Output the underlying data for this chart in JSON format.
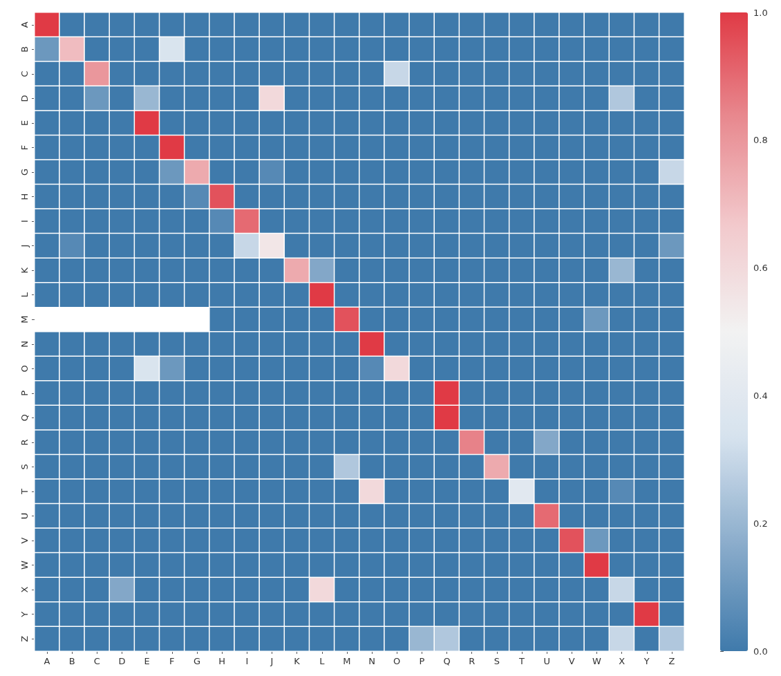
{
  "chart_data": {
    "type": "heatmap",
    "categories": [
      "A",
      "B",
      "C",
      "D",
      "E",
      "F",
      "G",
      "H",
      "I",
      "J",
      "K",
      "L",
      "M",
      "N",
      "O",
      "P",
      "Q",
      "R",
      "S",
      "T",
      "U",
      "V",
      "W",
      "X",
      "Y",
      "Z"
    ],
    "y_categories": [
      "A",
      "B",
      "C",
      "D",
      "E",
      "F",
      "G",
      "H",
      "I",
      "J",
      "K",
      "L",
      "M",
      "N",
      "O",
      "P",
      "Q",
      "R",
      "S",
      "T",
      "U",
      "V",
      "W",
      "X",
      "Y",
      "Z"
    ],
    "cells": [
      [
        1,
        0,
        0,
        0,
        0,
        0,
        0,
        0,
        0,
        0,
        0,
        0,
        0,
        0,
        0,
        0,
        0,
        0,
        0,
        0,
        0,
        0,
        0,
        0,
        0,
        0
      ],
      [
        0.1,
        0.7,
        0,
        0,
        0,
        0.35,
        0,
        0,
        0,
        0,
        0,
        0,
        0,
        0,
        0,
        0,
        0,
        0,
        0,
        0,
        0,
        0,
        0,
        0,
        0,
        0
      ],
      [
        0,
        0,
        0.8,
        0,
        0,
        0,
        0,
        0,
        0,
        0,
        0,
        0,
        0,
        0,
        0.3,
        0,
        0,
        0,
        0,
        0,
        0,
        0,
        0,
        0,
        0,
        0
      ],
      [
        0,
        0,
        0.1,
        0,
        0.2,
        0,
        0,
        0,
        0,
        0.6,
        0,
        0,
        0,
        0,
        0,
        0,
        0,
        0,
        0,
        0,
        0,
        0,
        0,
        0.25,
        0,
        0
      ],
      [
        0,
        0,
        0,
        0,
        1,
        0,
        0,
        0,
        0,
        0,
        0,
        0,
        0,
        0,
        0,
        0,
        0,
        0,
        0,
        0,
        0,
        0,
        0,
        0,
        0,
        0
      ],
      [
        0,
        0,
        0,
        0,
        0,
        1,
        0,
        0,
        0,
        0,
        0,
        0,
        0,
        0,
        0,
        0,
        0,
        0,
        0,
        0,
        0,
        0,
        0,
        0,
        0,
        0
      ],
      [
        0,
        0,
        0,
        0,
        0,
        0.1,
        0.75,
        0,
        0,
        0.05,
        0,
        0,
        0,
        0,
        0,
        0,
        0,
        0,
        0,
        0,
        0,
        0,
        0,
        0,
        0,
        0.3
      ],
      [
        0,
        0,
        0,
        0,
        0,
        0,
        0.05,
        0.95,
        0,
        0,
        0,
        0,
        0,
        0,
        0,
        0,
        0,
        0,
        0,
        0,
        0,
        0,
        0,
        0,
        0,
        0
      ],
      [
        0,
        0,
        0,
        0,
        0,
        0,
        0,
        0.05,
        0.9,
        0,
        0,
        0,
        0,
        0,
        0,
        0,
        0,
        0,
        0,
        0,
        0,
        0,
        0,
        0,
        0,
        0
      ],
      [
        0,
        0.05,
        0,
        0,
        0,
        0,
        0,
        0,
        0.3,
        0.55,
        0,
        0,
        0,
        0,
        0,
        0,
        0,
        0,
        0,
        0,
        0,
        0,
        0,
        0,
        0,
        0.1
      ],
      [
        0,
        0,
        0,
        0,
        0,
        0,
        0,
        0,
        0,
        0,
        0.75,
        0.15,
        0,
        0,
        0,
        0,
        0,
        0,
        0,
        0,
        0,
        0,
        0,
        0.2,
        0,
        0
      ],
      [
        0,
        0,
        0,
        0,
        0,
        0,
        0,
        0,
        0,
        0,
        0,
        1,
        0,
        0,
        0,
        0,
        0,
        0,
        0,
        0,
        0,
        0,
        0,
        0,
        0,
        0
      ],
      [
        null,
        null,
        null,
        null,
        null,
        null,
        null,
        0,
        0,
        0,
        0,
        0,
        0.95,
        0,
        0,
        0,
        0,
        0,
        0,
        0,
        0,
        0,
        0.1,
        0,
        0,
        0
      ],
      [
        0,
        0,
        0,
        0,
        0,
        0,
        0,
        0,
        0,
        0,
        0,
        0,
        0,
        1,
        0,
        0,
        0,
        0,
        0,
        0,
        0,
        0,
        0,
        0,
        0,
        0
      ],
      [
        0,
        0,
        0,
        0,
        0.35,
        0.1,
        0,
        0,
        0,
        0,
        0,
        0,
        0,
        0.05,
        0.6,
        0,
        0,
        0,
        0,
        0,
        0,
        0,
        0,
        0,
        0,
        0
      ],
      [
        0,
        0,
        0,
        0,
        0,
        0,
        0,
        0,
        0,
        0,
        0,
        0,
        0,
        0,
        0,
        0,
        1,
        0,
        0,
        0,
        0,
        0,
        0,
        0,
        0,
        0
      ],
      [
        0,
        0,
        0,
        0,
        0,
        0,
        0,
        0,
        0,
        0,
        0,
        0,
        0,
        0,
        0,
        0,
        1,
        0,
        0,
        0,
        0,
        0,
        0,
        0,
        0,
        0
      ],
      [
        0,
        0,
        0,
        0,
        0,
        0,
        0,
        0,
        0,
        0,
        0,
        0,
        0,
        0,
        0,
        0,
        0,
        0.85,
        0,
        0,
        0.15,
        0,
        0,
        0,
        0,
        0
      ],
      [
        0,
        0,
        0,
        0,
        0,
        0,
        0,
        0,
        0,
        0,
        0,
        0,
        0.25,
        0,
        0,
        0,
        0,
        0,
        0.75,
        0,
        0,
        0,
        0,
        0,
        0,
        0
      ],
      [
        0,
        0,
        0,
        0,
        0,
        0,
        0,
        0,
        0,
        0,
        0,
        0,
        0,
        0.6,
        0,
        0,
        0,
        0,
        0,
        0.4,
        0,
        0,
        0,
        0.05,
        0,
        0
      ],
      [
        0,
        0,
        0,
        0,
        0,
        0,
        0,
        0,
        0,
        0,
        0,
        0,
        0,
        0,
        0,
        0,
        0,
        0,
        0,
        0,
        0.9,
        0,
        0,
        0,
        0,
        0
      ],
      [
        0,
        0,
        0,
        0,
        0,
        0,
        0,
        0,
        0,
        0,
        0,
        0,
        0,
        0,
        0,
        0,
        0,
        0,
        0,
        0,
        0,
        0.95,
        0.1,
        0,
        0,
        0
      ],
      [
        0,
        0,
        0,
        0,
        0,
        0,
        0,
        0,
        0,
        0,
        0,
        0,
        0,
        0,
        0,
        0,
        0,
        0,
        0,
        0,
        0,
        0,
        1,
        0,
        0,
        0
      ],
      [
        0,
        0,
        0,
        0.15,
        0,
        0,
        0,
        0,
        0,
        0,
        0,
        0.6,
        0,
        0,
        0,
        0,
        0,
        0,
        0,
        0,
        0,
        0,
        0,
        0.3,
        0,
        0
      ],
      [
        0,
        0,
        0,
        0,
        0,
        0,
        0,
        0,
        0,
        0,
        0,
        0,
        0,
        0,
        0,
        0,
        0,
        0,
        0,
        0,
        0,
        0,
        0,
        0,
        1,
        0
      ],
      [
        0,
        0,
        0,
        0,
        0,
        0,
        0,
        0,
        0,
        0,
        0,
        0,
        0,
        0,
        0,
        0.2,
        0.25,
        0,
        0,
        0,
        0,
        0,
        0,
        0.3,
        0,
        0.25
      ]
    ],
    "clim": [
      0,
      1
    ],
    "cticks": [
      {
        "value": 0,
        "label": "0.0"
      },
      {
        "value": 0.2,
        "label": "0.2"
      },
      {
        "value": 0.4,
        "label": "0.4"
      },
      {
        "value": 0.6,
        "label": "0.6"
      },
      {
        "value": 0.8,
        "label": "0.8"
      },
      {
        "value": 1,
        "label": "1.0"
      }
    ]
  }
}
